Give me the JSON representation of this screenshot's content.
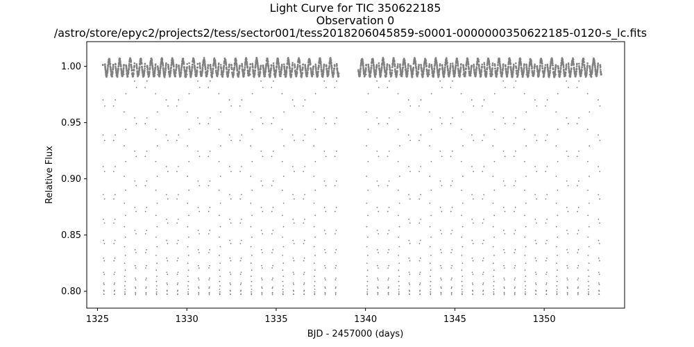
{
  "chart_data": {
    "type": "scatter",
    "title_lines": [
      "Light Curve for TIC 350622185",
      "Observation 0",
      "/astro/store/epyc2/projects2/tess/sector001/tess2018206045859-s0001-0000000350622185-0120-s_lc.fits"
    ],
    "xlabel": "BJD - 2457000 (days)",
    "ylabel": "Relative Flux",
    "xlim": [
      1324.4,
      1354.5
    ],
    "ylim": [
      0.785,
      1.022
    ],
    "xticks": [
      1325,
      1330,
      1335,
      1340,
      1345,
      1350
    ],
    "xtick_labels": [
      "1325",
      "1330",
      "1335",
      "1340",
      "1345",
      "1350"
    ],
    "yticks": [
      0.8,
      0.85,
      0.9,
      0.95,
      1.0
    ],
    "ytick_labels": [
      "0.80",
      "0.85",
      "0.90",
      "0.95",
      "1.00"
    ],
    "grid": false,
    "marker_color": "#808080",
    "series": [
      {
        "segments": [
          {
            "x_start": 1325.3,
            "x_end": 1338.5
          },
          {
            "x_start": 1339.6,
            "x_end": 1353.2
          }
        ],
        "period_days": 0.5896,
        "baseline_flux": 1.0,
        "oscillation_amplitude": 0.008,
        "eclipse_minimum_flux": 0.797
      }
    ]
  }
}
